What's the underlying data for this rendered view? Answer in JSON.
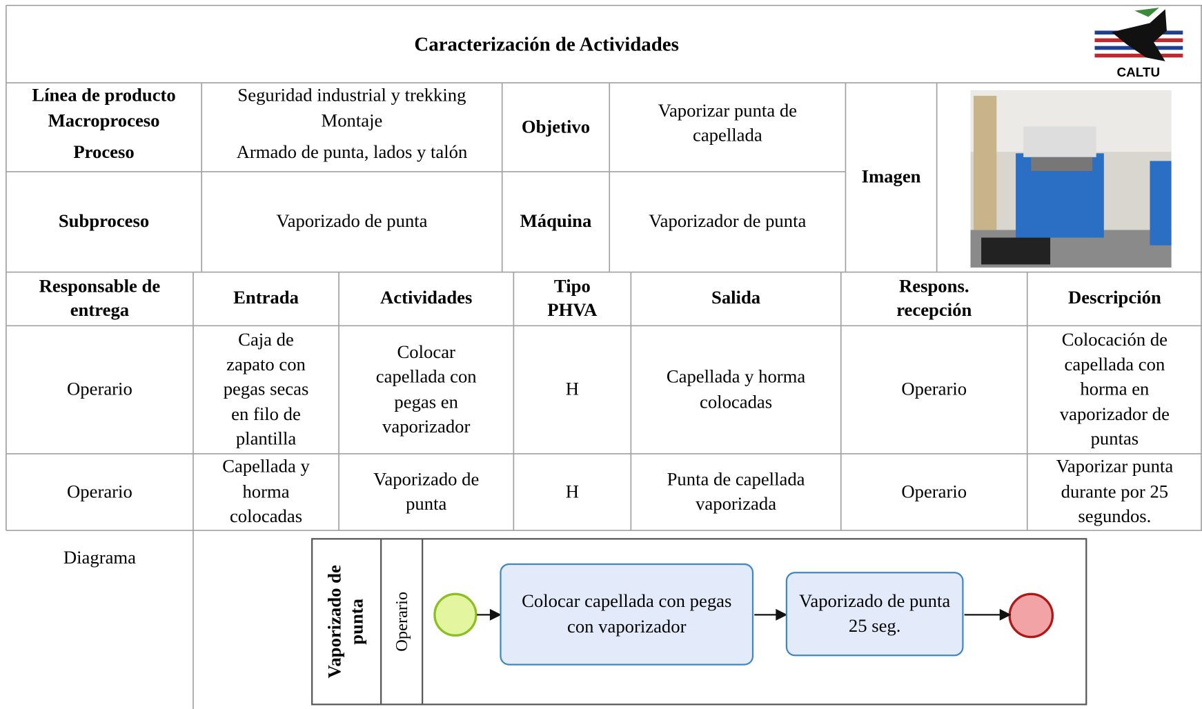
{
  "header": {
    "title": "Caracterización de Actividades",
    "logo_text": "CALTU"
  },
  "info": {
    "rows": [
      [
        "Línea de producto",
        "Seguridad industrial y trekking"
      ],
      [
        "Macroproceso",
        "Montaje"
      ],
      [
        "Proceso",
        "Armado de punta, lados y talón"
      ],
      [
        "Subproceso",
        "Vaporizado de punta"
      ]
    ],
    "objetivo": {
      "label": "Objetivo",
      "value": "Vaporizar punta de capellada"
    },
    "maquina": {
      "label": "Máquina",
      "value": "Vaporizador de punta"
    },
    "imagen_label": "Imagen"
  },
  "table": {
    "columns": [
      "Responsable de entrega",
      "Entrada",
      "Actividades",
      "Tipo PHVA",
      "Salida",
      "Respons. recepción",
      "Descripción"
    ],
    "rows": [
      [
        "Operario",
        "Caja de zapato con pegas secas en filo de plantilla",
        "Colocar capellada con pegas en vaporizador",
        "H",
        "Capellada y horma colocadas",
        "Operario",
        "Colocación de capellada con horma en vaporizador de puntas"
      ],
      [
        "Operario",
        "Capellada y horma colocadas",
        "Vaporizado de punta",
        "H",
        "Punta de capellada vaporizada",
        "Operario",
        "Vaporizar punta durante por 25 segundos."
      ]
    ]
  },
  "diagram": {
    "label": "Diagrama",
    "pool": "Vaporizado de punta",
    "lane": "Operario",
    "tasks": [
      "Colocar capellada con pegas con vaporizador",
      "Vaporizado de punta 25 seg."
    ]
  }
}
